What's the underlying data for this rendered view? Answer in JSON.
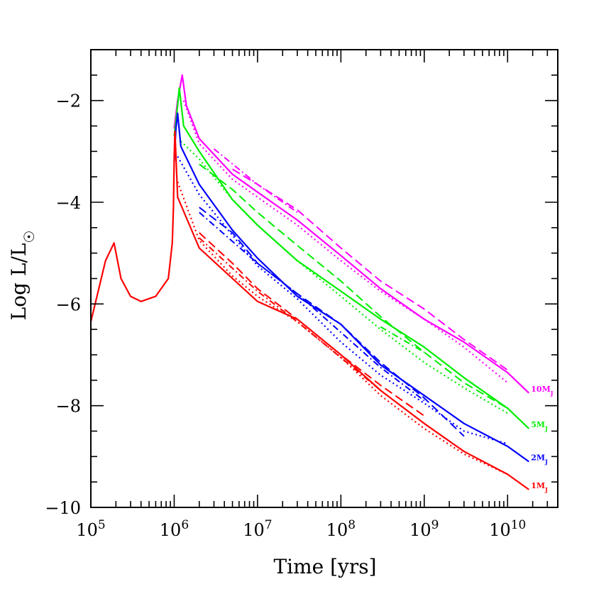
{
  "chart_data": {
    "type": "line",
    "xlabel": "Time [yrs]",
    "ylabel": "Log L/L",
    "ylabel_symbol": "☉",
    "x_scale": "log10",
    "xlim": [
      100000,
      40000000000
    ],
    "ylim": [
      -10,
      -1
    ],
    "x_major_ticks": [
      {
        "value": 100000,
        "base": "10",
        "exp": "5"
      },
      {
        "value": 1000000,
        "base": "10",
        "exp": "6"
      },
      {
        "value": 10000000,
        "base": "10",
        "exp": "7"
      },
      {
        "value": 100000000,
        "base": "10",
        "exp": "8"
      },
      {
        "value": 1000000000,
        "base": "10",
        "exp": "9"
      },
      {
        "value": 10000000000,
        "base": "10",
        "exp": "10"
      }
    ],
    "y_major_ticks": [
      {
        "value": -2,
        "label": "−2"
      },
      {
        "value": -4,
        "label": "−4"
      },
      {
        "value": -6,
        "label": "−6"
      },
      {
        "value": -8,
        "label": "−8"
      },
      {
        "value": -10,
        "label": "−10"
      }
    ],
    "grid": false,
    "line_style_legend": "solid, dashed, dotted and dash-dotted curves of each colour are alternative models for the same mass",
    "series": [
      {
        "name": "10MJ",
        "label": "10M",
        "label_sub": "J",
        "color": "#ff00ff",
        "solid": [
          [
            1000000,
            -2.55
          ],
          [
            1100000,
            -2.0
          ],
          [
            1250000,
            -1.5
          ],
          [
            1400000,
            -2.1
          ],
          [
            2000000,
            -2.75
          ],
          [
            5000000,
            -3.45
          ],
          [
            10000000,
            -3.8
          ],
          [
            30000000,
            -4.35
          ],
          [
            100000000,
            -5.05
          ],
          [
            300000000,
            -5.7
          ],
          [
            1000000000,
            -6.3
          ],
          [
            3000000000,
            -6.75
          ],
          [
            10000000000,
            -7.35
          ],
          [
            18000000000,
            -7.75
          ]
        ],
        "dashed": [
          [
            5000000,
            -3.35
          ],
          [
            10000000,
            -3.65
          ],
          [
            30000000,
            -4.15
          ],
          [
            100000000,
            -4.9
          ],
          [
            300000000,
            -5.55
          ],
          [
            1000000000,
            -6.1
          ],
          [
            3000000000,
            -6.7
          ],
          [
            10000000000,
            -7.3
          ]
        ],
        "dotted": [
          [
            1300000,
            -2.0
          ],
          [
            2000000,
            -2.85
          ],
          [
            5000000,
            -3.55
          ],
          [
            10000000,
            -3.9
          ],
          [
            30000000,
            -4.45
          ],
          [
            100000000,
            -5.15
          ],
          [
            300000000,
            -5.75
          ],
          [
            1000000000,
            -6.3
          ],
          [
            3000000000,
            -6.85
          ],
          [
            10000000000,
            -7.55
          ]
        ],
        "dashdot": [
          [
            3000000,
            -2.95
          ],
          [
            10000000,
            -3.65
          ],
          [
            30000000,
            -4.2
          ]
        ]
      },
      {
        "name": "5MJ",
        "label": "5M",
        "label_sub": "J",
        "color": "#00ee00",
        "solid": [
          [
            1000000,
            -2.7
          ],
          [
            1100000,
            -2.1
          ],
          [
            1150000,
            -1.75
          ],
          [
            1300000,
            -2.5
          ],
          [
            2000000,
            -3.0
          ],
          [
            5000000,
            -3.95
          ],
          [
            10000000,
            -4.45
          ],
          [
            30000000,
            -5.15
          ],
          [
            100000000,
            -5.75
          ],
          [
            300000000,
            -6.3
          ],
          [
            1000000000,
            -6.85
          ],
          [
            3000000000,
            -7.45
          ],
          [
            10000000000,
            -8.05
          ],
          [
            18000000000,
            -8.45
          ]
        ],
        "dashed": [
          [
            2000000,
            -3.25
          ],
          [
            5000000,
            -3.75
          ],
          [
            10000000,
            -4.2
          ],
          [
            30000000,
            -4.85
          ],
          [
            100000000,
            -5.55
          ],
          [
            300000000,
            -6.25
          ],
          [
            1000000000,
            -6.95
          ],
          [
            3000000000,
            -7.55
          ],
          [
            10000000000,
            -8.05
          ]
        ],
        "dotted": [
          [
            1200000,
            -2.8
          ],
          [
            2000000,
            -3.15
          ],
          [
            5000000,
            -3.95
          ],
          [
            10000000,
            -4.45
          ],
          [
            30000000,
            -5.15
          ],
          [
            100000000,
            -5.85
          ],
          [
            300000000,
            -6.5
          ],
          [
            1000000000,
            -7.15
          ],
          [
            3000000000,
            -7.65
          ],
          [
            10000000000,
            -8.15
          ]
        ],
        "dashdot": [
          [
            300000000,
            -6.45
          ],
          [
            1000000000,
            -6.95
          ]
        ]
      },
      {
        "name": "2MJ",
        "label": "2M",
        "label_sub": "J",
        "color": "#0000ff",
        "solid": [
          [
            1000000,
            -3.2
          ],
          [
            1050000,
            -2.55
          ],
          [
            1100000,
            -2.25
          ],
          [
            1200000,
            -2.9
          ],
          [
            2000000,
            -3.65
          ],
          [
            5000000,
            -4.55
          ],
          [
            10000000,
            -5.1
          ],
          [
            30000000,
            -5.85
          ],
          [
            100000000,
            -6.4
          ],
          [
            300000000,
            -7.2
          ],
          [
            1000000000,
            -7.8
          ],
          [
            3000000000,
            -8.35
          ],
          [
            10000000000,
            -8.8
          ],
          [
            18000000000,
            -9.1
          ]
        ],
        "dashed": [
          [
            2000000,
            -4.1
          ],
          [
            5000000,
            -4.6
          ],
          [
            10000000,
            -5.2
          ],
          [
            30000000,
            -5.8
          ],
          [
            100000000,
            -6.4
          ],
          [
            300000000,
            -7.15
          ],
          [
            1000000000,
            -7.85
          ],
          [
            3000000000,
            -8.6
          ]
        ],
        "dotted": [
          [
            1100000,
            -3.1
          ],
          [
            2000000,
            -3.85
          ],
          [
            5000000,
            -4.65
          ],
          [
            10000000,
            -5.25
          ],
          [
            30000000,
            -5.9
          ],
          [
            100000000,
            -6.75
          ],
          [
            300000000,
            -7.4
          ],
          [
            1000000000,
            -7.95
          ],
          [
            3000000000,
            -8.5
          ],
          [
            10000000000,
            -8.75
          ]
        ],
        "dashdot": [
          [
            2000000,
            -4.2
          ],
          [
            10000000,
            -5.2
          ],
          [
            30000000,
            -5.8
          ],
          [
            300000000,
            -7.25
          ],
          [
            1000000000,
            -7.9
          ]
        ]
      },
      {
        "name": "1MJ",
        "label": "1M",
        "label_sub": "J",
        "color": "#ff0000",
        "solid": [
          [
            100000,
            -6.35
          ],
          [
            150000,
            -5.15
          ],
          [
            190000,
            -4.8
          ],
          [
            230000,
            -5.5
          ],
          [
            300000,
            -5.85
          ],
          [
            400000,
            -5.95
          ],
          [
            600000,
            -5.85
          ],
          [
            850000,
            -5.5
          ],
          [
            950000,
            -4.8
          ],
          [
            980000,
            -4.1
          ],
          [
            1000000,
            -3.1
          ],
          [
            1020000,
            -2.6
          ],
          [
            1100000,
            -3.9
          ],
          [
            2000000,
            -4.9
          ],
          [
            5000000,
            -5.5
          ],
          [
            10000000,
            -5.95
          ],
          [
            30000000,
            -6.3
          ],
          [
            100000000,
            -7.0
          ],
          [
            300000000,
            -7.7
          ],
          [
            1000000000,
            -8.35
          ],
          [
            3000000000,
            -8.9
          ],
          [
            10000000000,
            -9.35
          ],
          [
            18000000000,
            -9.65
          ]
        ],
        "dashed": [
          [
            2000000,
            -4.6
          ],
          [
            5000000,
            -5.2
          ],
          [
            10000000,
            -5.7
          ],
          [
            30000000,
            -6.3
          ],
          [
            100000000,
            -7.0
          ],
          [
            300000000,
            -7.6
          ],
          [
            1000000000,
            -8.2
          ]
        ],
        "dotted": [
          [
            1100000,
            -3.6
          ],
          [
            2000000,
            -4.75
          ],
          [
            5000000,
            -5.45
          ],
          [
            10000000,
            -5.85
          ],
          [
            30000000,
            -6.35
          ],
          [
            100000000,
            -7.05
          ],
          [
            300000000,
            -7.8
          ],
          [
            1000000000,
            -8.45
          ],
          [
            3000000000,
            -8.95
          ],
          [
            10000000000,
            -9.35
          ]
        ],
        "dashdot": [
          [
            2000000,
            -4.7
          ],
          [
            10000000,
            -5.75
          ],
          [
            30000000,
            -6.35
          ],
          [
            300000000,
            -7.7
          ]
        ]
      }
    ]
  }
}
